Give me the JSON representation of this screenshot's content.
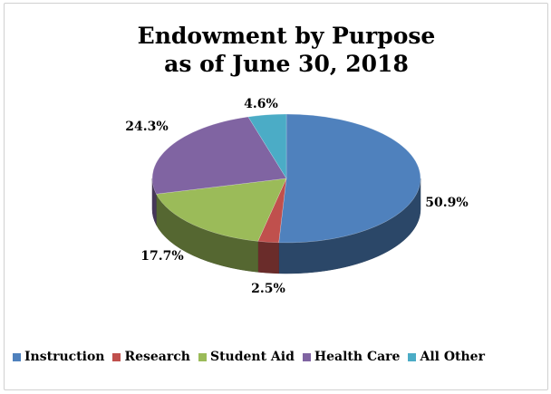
{
  "chart_data": {
    "type": "pie",
    "title_line1": "Endowment by Purpose",
    "title_line2": "as of June 30, 2018",
    "slices": [
      {
        "label": "Instruction",
        "value": 50.9,
        "value_label": "50.9%",
        "color": "#4F81BD"
      },
      {
        "label": "Research",
        "value": 2.5,
        "value_label": "2.5%",
        "color": "#C0504D"
      },
      {
        "label": "Student Aid",
        "value": 17.7,
        "value_label": "17.7%",
        "color": "#9BBB59"
      },
      {
        "label": "Health Care",
        "value": 24.3,
        "value_label": "24.3%",
        "color": "#8064A2"
      },
      {
        "label": "All Other",
        "value": 4.6,
        "value_label": "4.6%",
        "color": "#4BACC6"
      }
    ],
    "legend_position": "bottom",
    "style": "3d-pie"
  }
}
